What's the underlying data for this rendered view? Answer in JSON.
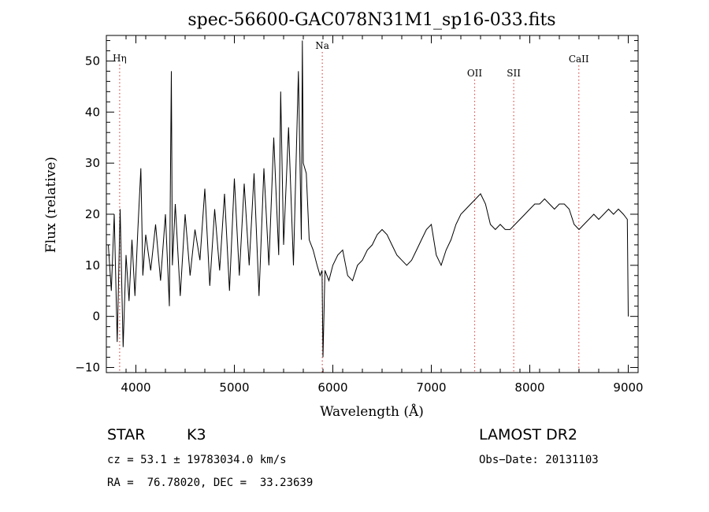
{
  "chart_data": {
    "type": "line",
    "title": "spec-56600-GAC078N31M1_sp16-033.fits",
    "xlabel": "Wavelength (Å)",
    "ylabel": "Flux (relative)",
    "xlim": [
      3700,
      9100
    ],
    "ylim": [
      -11,
      55
    ],
    "xticks": [
      4000,
      5000,
      6000,
      7000,
      8000,
      9000
    ],
    "yticks": [
      -10,
      0,
      10,
      20,
      30,
      40,
      50
    ],
    "tick_labels_x": [
      "4000",
      "5000",
      "6000",
      "7000",
      "8000",
      "9000"
    ],
    "tick_labels_y": [
      "−10",
      "0",
      "10",
      "20",
      "30",
      "40",
      "50"
    ],
    "grid": false,
    "line_color": "#000000",
    "series": [
      {
        "x": [
          3720,
          3750,
          3780,
          3810,
          3840,
          3870,
          3900,
          3930,
          3960,
          3990,
          4020,
          4050,
          4070,
          4100,
          4150,
          4200,
          4250,
          4300,
          4340,
          4360,
          4370,
          4400,
          4450,
          4500,
          4550,
          4600,
          4650,
          4700,
          4750,
          4800,
          4850,
          4900,
          4950,
          5000,
          5050,
          5100,
          5150,
          5200,
          5250,
          5300,
          5350,
          5400,
          5450,
          5470,
          5500,
          5550,
          5600,
          5650,
          5680,
          5690,
          5700,
          5730,
          5760,
          5800,
          5840,
          5870,
          5890,
          5900,
          5920,
          5960,
          6000,
          6050,
          6100,
          6150,
          6200,
          6250,
          6300,
          6350,
          6400,
          6450,
          6500,
          6550,
          6600,
          6650,
          6700,
          6750,
          6800,
          6850,
          6900,
          6950,
          7000,
          7050,
          7100,
          7150,
          7200,
          7250,
          7300,
          7350,
          7400,
          7450,
          7500,
          7550,
          7600,
          7650,
          7700,
          7750,
          7800,
          7850,
          7900,
          7950,
          8000,
          8050,
          8100,
          8150,
          8200,
          8250,
          8300,
          8350,
          8400,
          8450,
          8500,
          8550,
          8600,
          8650,
          8700,
          8750,
          8800,
          8850,
          8900,
          8950,
          8990,
          9000
        ],
        "y": [
          14,
          5,
          20,
          -5,
          21,
          -6,
          12,
          3,
          15,
          4,
          17,
          29,
          8,
          16,
          9,
          18,
          7,
          20,
          2,
          48,
          10,
          22,
          4,
          20,
          8,
          17,
          11,
          25,
          6,
          21,
          9,
          24,
          5,
          27,
          8,
          26,
          10,
          28,
          4,
          29,
          10,
          35,
          12,
          44,
          14,
          37,
          10,
          48,
          15,
          54,
          30,
          28,
          15,
          13,
          10,
          8,
          9,
          -8,
          9,
          7,
          10,
          12,
          13,
          8,
          7,
          10,
          11,
          13,
          14,
          16,
          17,
          16,
          14,
          12,
          11,
          10,
          11,
          13,
          15,
          17,
          18,
          12,
          10,
          13,
          15,
          18,
          20,
          21,
          22,
          23,
          24,
          22,
          18,
          17,
          18,
          17,
          17,
          18,
          19,
          20,
          21,
          22,
          22,
          23,
          22,
          21,
          22,
          22,
          21,
          18,
          17,
          18,
          19,
          20,
          19,
          20,
          21,
          20,
          21,
          20,
          19,
          0
        ]
      }
    ],
    "line_markers": [
      {
        "x": 3835,
        "label": "Hη"
      },
      {
        "x": 5893,
        "label": "Na"
      },
      {
        "x": 7440,
        "label": "OII"
      },
      {
        "x": 7837,
        "label": "SII"
      },
      {
        "x": 8498,
        "label": "CaII"
      }
    ],
    "marker_color": "#d9534f"
  },
  "info": {
    "class": "STAR",
    "subclass": "K3",
    "survey": "LAMOST DR2",
    "cz": "cz = 53.1 ± 19783034.0 km/s",
    "obs_date": "Obs−Date: 20131103",
    "radec": "RA =  76.78020, DEC =  33.23639"
  }
}
